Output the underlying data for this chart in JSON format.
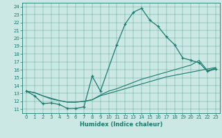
{
  "xlabel": "Humidex (Indice chaleur)",
  "xlim": [
    -0.5,
    23.5
  ],
  "ylim": [
    10.5,
    24.5
  ],
  "xticks": [
    0,
    1,
    2,
    3,
    4,
    5,
    6,
    7,
    8,
    9,
    10,
    11,
    12,
    13,
    14,
    15,
    16,
    17,
    18,
    19,
    20,
    21,
    22,
    23
  ],
  "yticks": [
    11,
    12,
    13,
    14,
    15,
    16,
    17,
    18,
    19,
    20,
    21,
    22,
    23,
    24
  ],
  "color": "#1a7a6e",
  "bg_color": "#cce8e4",
  "line1_x": [
    0,
    1,
    2,
    3,
    4,
    5,
    6,
    7,
    8,
    9,
    11,
    12,
    13,
    14,
    15,
    16,
    17,
    18,
    19,
    20,
    21,
    22,
    23
  ],
  "line1_y": [
    13.3,
    12.7,
    11.7,
    11.8,
    11.6,
    11.1,
    11.1,
    11.3,
    15.2,
    13.3,
    19.2,
    21.8,
    23.3,
    23.8,
    22.3,
    21.5,
    20.2,
    19.2,
    17.5,
    17.2,
    16.9,
    15.8,
    16.1
  ],
  "line2_x": [
    0,
    1,
    2,
    3,
    4,
    5,
    6,
    7,
    8,
    9,
    10,
    11,
    12,
    13,
    14,
    15,
    16,
    17,
    18,
    19,
    20,
    21,
    22,
    23
  ],
  "line2_y": [
    13.3,
    13.1,
    12.7,
    12.4,
    12.1,
    11.9,
    11.9,
    12.0,
    12.2,
    12.8,
    13.3,
    13.6,
    14.0,
    14.4,
    14.8,
    15.1,
    15.4,
    15.7,
    16.0,
    16.3,
    16.6,
    17.2,
    15.9,
    16.2
  ],
  "line3_x": [
    0,
    1,
    2,
    3,
    4,
    5,
    6,
    7,
    8,
    9,
    10,
    11,
    12,
    13,
    14,
    15,
    16,
    17,
    18,
    19,
    20,
    21,
    22,
    23
  ],
  "line3_y": [
    13.3,
    13.1,
    12.7,
    12.3,
    12.1,
    11.9,
    11.9,
    12.0,
    12.2,
    12.7,
    13.0,
    13.3,
    13.6,
    13.9,
    14.2,
    14.5,
    14.8,
    15.1,
    15.3,
    15.5,
    15.7,
    15.9,
    16.1,
    16.3
  ]
}
